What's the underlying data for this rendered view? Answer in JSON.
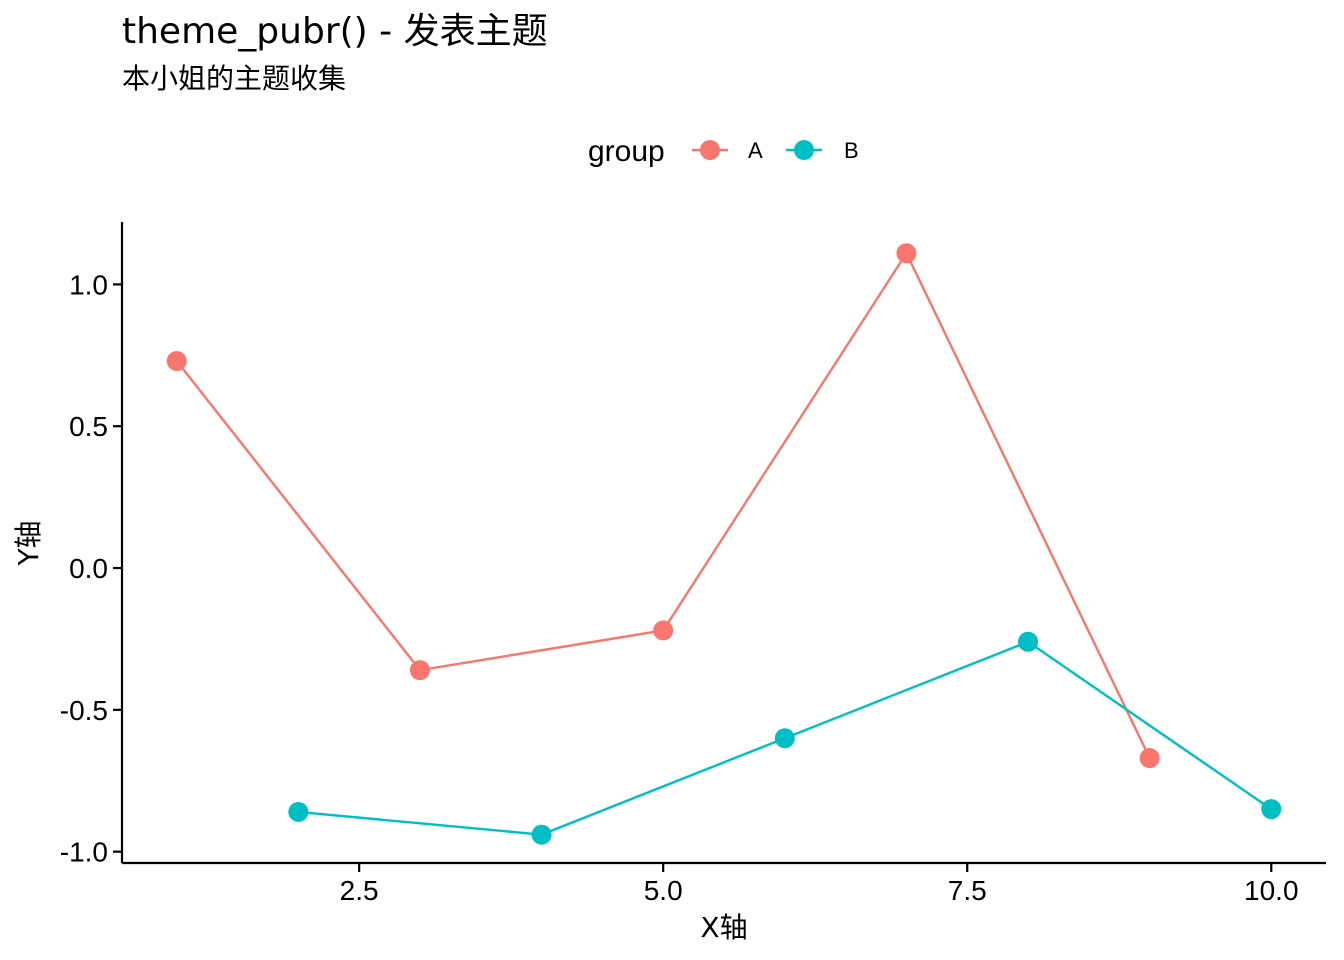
{
  "chart_data": {
    "type": "line",
    "title": "theme_pubr() - 发表主题",
    "subtitle": "本小姐的主题收集",
    "xlabel": "X轴",
    "ylabel": "Y轴",
    "xlim": [
      0.55,
      10.45
    ],
    "ylim": [
      -1.04,
      1.22
    ],
    "xticks": [
      2.5,
      5.0,
      7.5,
      10.0
    ],
    "xtick_labels": [
      "2.5",
      "5.0",
      "7.5",
      "10.0"
    ],
    "yticks": [
      -1.0,
      -0.5,
      0.0,
      0.5,
      1.0
    ],
    "ytick_labels": [
      "-1.0",
      "-0.5",
      "0.0",
      "0.5",
      "1.0"
    ],
    "legend": {
      "title": "group",
      "position": "top"
    },
    "grid": false,
    "series": [
      {
        "name": "A",
        "color": "#F8766D",
        "x": [
          1,
          3,
          5,
          7,
          9
        ],
        "y": [
          0.73,
          -0.36,
          -0.22,
          1.11,
          -0.67
        ]
      },
      {
        "name": "B",
        "color": "#00BFC4",
        "x": [
          2,
          4,
          6,
          8,
          10
        ],
        "y": [
          -0.86,
          -0.94,
          -0.6,
          -0.26,
          -0.85
        ]
      }
    ]
  }
}
